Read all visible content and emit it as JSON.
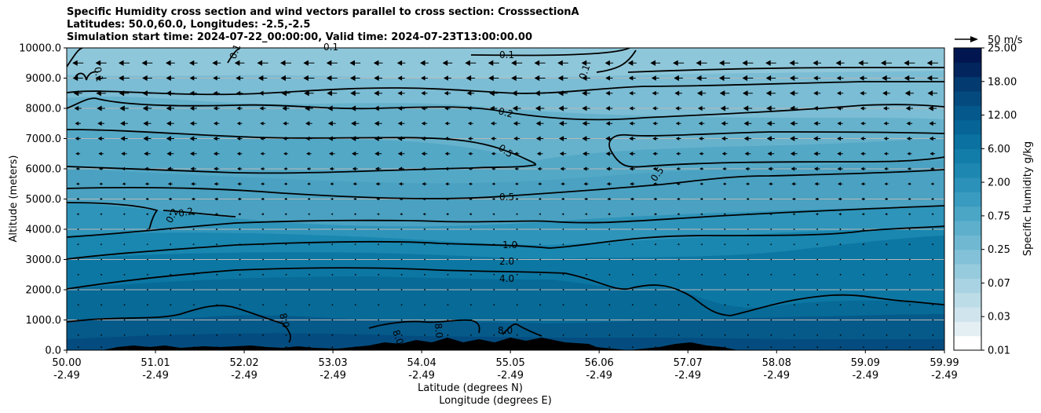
{
  "title_lines": [
    "Specific Humidity cross section and wind vectors parallel to cross section: CrosssectionA",
    "Latitudes: 50.0,60.0, Longitudes: -2.5,-2.5",
    "Simulation start time: 2024-07-22_00:00:00, Valid time: 2024-07-23T13:00:00.00"
  ],
  "chart_data": {
    "type": "heatmap",
    "ylabel": "Altitude (meters)",
    "xlabel_lines": [
      "Latitude (degrees N)",
      "Longitude (degrees E)"
    ],
    "y_ticks": [
      "0.0",
      "1000.0",
      "2000.0",
      "3000.0",
      "4000.0",
      "5000.0",
      "6000.0",
      "7000.0",
      "8000.0",
      "9000.0",
      "10000.0"
    ],
    "ylim": [
      0,
      10000
    ],
    "x_ticks": [
      {
        "lat": "50.00",
        "lon": "-2.49"
      },
      {
        "lat": "51.01",
        "lon": "-2.49"
      },
      {
        "lat": "52.02",
        "lon": "-2.49"
      },
      {
        "lat": "53.03",
        "lon": "-2.49"
      },
      {
        "lat": "54.04",
        "lon": "-2.49"
      },
      {
        "lat": "55.05",
        "lon": "-2.49"
      },
      {
        "lat": "56.06",
        "lon": "-2.49"
      },
      {
        "lat": "57.07",
        "lon": "-2.49"
      },
      {
        "lat": "58.08",
        "lon": "-2.49"
      },
      {
        "lat": "59.09",
        "lon": "-2.49"
      },
      {
        "lat": "59.99",
        "lon": "-2.49"
      }
    ],
    "xlim": [
      50.0,
      59.99
    ],
    "grid": "horizontal",
    "colorbar": {
      "label": "Specific Humidity g/kg",
      "ticks": [
        "0.01",
        "0.03",
        "0.07",
        "0.25",
        "0.75",
        "2.00",
        "6.00",
        "12.00",
        "18.00",
        "25.00"
      ],
      "levels": 20,
      "colormap": [
        "#ffffff",
        "#e3eff3",
        "#cfe4ec",
        "#bcdde8",
        "#a9d3e3",
        "#96cadd",
        "#83c1d8",
        "#70b8d2",
        "#5dafcc",
        "#4ba6c6",
        "#3a9bc0",
        "#2b91b9",
        "#1d87b1",
        "#127da9",
        "#0a71a0",
        "#066596",
        "#05588b",
        "#044a7e",
        "#033a6f",
        "#02255e",
        "#011650"
      ]
    },
    "contour_labels": [
      "0.1",
      "0.1",
      "0.1",
      "0.1",
      "0.1",
      "0.2",
      "0.5",
      "0.5",
      "0.5",
      "0.2",
      "0.2",
      "1.0",
      "2.0",
      "4.0",
      "8.0",
      "8.0",
      "8.0",
      "8.0"
    ],
    "quiver_key": "50 m/s",
    "wind_rows": [
      {
        "alt": 9500,
        "u": -12
      },
      {
        "alt": 9000,
        "u": -10
      },
      {
        "alt": 8500,
        "u": -9
      },
      {
        "alt": 8000,
        "u": -8
      },
      {
        "alt": 7500,
        "u": -7
      },
      {
        "alt": 7000,
        "u": -7
      },
      {
        "alt": 6500,
        "u": -6
      },
      {
        "alt": 6000,
        "u": -5
      },
      {
        "alt": 5500,
        "u": -4
      },
      {
        "alt": 5000,
        "u": -3
      },
      {
        "alt": 4500,
        "u": -2
      },
      {
        "alt": 4000,
        "u": -1
      },
      {
        "alt": 3500,
        "u": -1
      },
      {
        "alt": 3000,
        "u": 0
      },
      {
        "alt": 2500,
        "u": 0
      },
      {
        "alt": 2000,
        "u": 0
      },
      {
        "alt": 1500,
        "u": 0
      },
      {
        "alt": 1000,
        "u": 0
      },
      {
        "alt": 500,
        "u": 0
      },
      {
        "alt": 100,
        "u": 0
      }
    ]
  }
}
